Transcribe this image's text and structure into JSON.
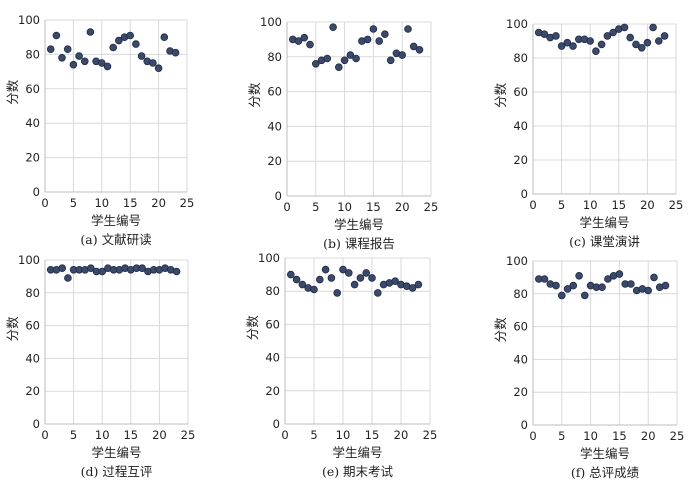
{
  "chart_data": [
    {
      "type": "scatter",
      "caption": "(a) 文献研读",
      "xlabel": "学生编号",
      "ylabel": "分数",
      "xlim": [
        0,
        25
      ],
      "ylim": [
        0,
        100
      ],
      "xticks": [
        0,
        5,
        10,
        15,
        20,
        25
      ],
      "yticks": [
        0,
        20,
        40,
        60,
        80,
        100
      ],
      "grid": true,
      "points": [
        [
          1,
          83
        ],
        [
          2,
          91
        ],
        [
          3,
          78
        ],
        [
          4,
          83
        ],
        [
          5,
          74
        ],
        [
          6,
          79
        ],
        [
          7,
          76
        ],
        [
          8,
          93
        ],
        [
          9,
          76
        ],
        [
          10,
          75
        ],
        [
          11,
          73
        ],
        [
          12,
          84
        ],
        [
          13,
          88
        ],
        [
          14,
          90
        ],
        [
          15,
          91
        ],
        [
          16,
          86
        ],
        [
          17,
          79
        ],
        [
          18,
          76
        ],
        [
          19,
          75
        ],
        [
          20,
          72
        ],
        [
          21,
          90
        ],
        [
          22,
          82
        ],
        [
          23,
          81
        ]
      ]
    },
    {
      "type": "scatter",
      "caption": "(b) 课程报告",
      "xlabel": "学生编号",
      "ylabel": "分数",
      "xlim": [
        0,
        25
      ],
      "ylim": [
        0,
        100
      ],
      "xticks": [
        0,
        5,
        10,
        15,
        20,
        25
      ],
      "yticks": [
        0,
        20,
        40,
        60,
        80,
        100
      ],
      "grid": true,
      "points": [
        [
          1,
          90
        ],
        [
          2,
          89
        ],
        [
          3,
          91
        ],
        [
          4,
          87
        ],
        [
          5,
          76
        ],
        [
          6,
          78
        ],
        [
          7,
          79
        ],
        [
          8,
          97
        ],
        [
          9,
          74
        ],
        [
          10,
          78
        ],
        [
          11,
          81
        ],
        [
          12,
          79
        ],
        [
          13,
          89
        ],
        [
          14,
          90
        ],
        [
          15,
          96
        ],
        [
          16,
          89
        ],
        [
          17,
          93
        ],
        [
          18,
          78
        ],
        [
          19,
          82
        ],
        [
          20,
          81
        ],
        [
          21,
          96
        ],
        [
          22,
          86
        ],
        [
          23,
          84
        ]
      ]
    },
    {
      "type": "scatter",
      "caption": "(c) 课堂演讲",
      "xlabel": "学生编号",
      "ylabel": "分数",
      "xlim": [
        0,
        25
      ],
      "ylim": [
        0,
        100
      ],
      "xticks": [
        0,
        5,
        10,
        15,
        20,
        25
      ],
      "yticks": [
        0,
        20,
        40,
        60,
        80,
        100
      ],
      "grid": true,
      "points": [
        [
          1,
          95
        ],
        [
          2,
          94
        ],
        [
          3,
          92
        ],
        [
          4,
          93
        ],
        [
          5,
          87
        ],
        [
          6,
          89
        ],
        [
          7,
          87
        ],
        [
          8,
          91
        ],
        [
          9,
          91
        ],
        [
          10,
          90
        ],
        [
          11,
          84
        ],
        [
          12,
          88
        ],
        [
          13,
          93
        ],
        [
          14,
          95
        ],
        [
          15,
          97
        ],
        [
          16,
          98
        ],
        [
          17,
          92
        ],
        [
          18,
          88
        ],
        [
          19,
          86
        ],
        [
          20,
          89
        ],
        [
          21,
          98
        ],
        [
          22,
          90
        ],
        [
          23,
          93
        ]
      ]
    },
    {
      "type": "scatter",
      "caption": "(d) 过程互评",
      "xlabel": "学生编号",
      "ylabel": "分数",
      "xlim": [
        0,
        25
      ],
      "ylim": [
        0,
        100
      ],
      "xticks": [
        0,
        5,
        10,
        15,
        20,
        25
      ],
      "yticks": [
        0,
        20,
        40,
        60,
        80,
        100
      ],
      "grid": true,
      "points": [
        [
          1,
          94
        ],
        [
          2,
          94
        ],
        [
          3,
          95
        ],
        [
          4,
          89
        ],
        [
          5,
          94
        ],
        [
          6,
          94
        ],
        [
          7,
          94
        ],
        [
          8,
          95
        ],
        [
          9,
          93
        ],
        [
          10,
          93
        ],
        [
          11,
          95
        ],
        [
          12,
          94
        ],
        [
          13,
          94
        ],
        [
          14,
          95
        ],
        [
          15,
          94
        ],
        [
          16,
          95
        ],
        [
          17,
          95
        ],
        [
          18,
          93
        ],
        [
          19,
          94
        ],
        [
          20,
          94
        ],
        [
          21,
          95
        ],
        [
          22,
          94
        ],
        [
          23,
          93
        ]
      ]
    },
    {
      "type": "scatter",
      "caption": "(e) 期末考试",
      "xlabel": "学生编号",
      "ylabel": "分数",
      "xlim": [
        0,
        25
      ],
      "ylim": [
        0,
        100
      ],
      "xticks": [
        0,
        5,
        10,
        15,
        20,
        25
      ],
      "yticks": [
        0,
        20,
        40,
        60,
        80,
        100
      ],
      "grid": true,
      "points": [
        [
          1,
          90
        ],
        [
          2,
          87
        ],
        [
          3,
          84
        ],
        [
          4,
          82
        ],
        [
          5,
          81
        ],
        [
          6,
          87
        ],
        [
          7,
          93
        ],
        [
          8,
          88
        ],
        [
          9,
          79
        ],
        [
          10,
          93
        ],
        [
          11,
          91
        ],
        [
          12,
          84
        ],
        [
          13,
          88
        ],
        [
          14,
          91
        ],
        [
          15,
          88
        ],
        [
          16,
          79
        ],
        [
          17,
          84
        ],
        [
          18,
          85
        ],
        [
          19,
          86
        ],
        [
          20,
          84
        ],
        [
          21,
          83
        ],
        [
          22,
          82
        ],
        [
          23,
          84
        ]
      ]
    },
    {
      "type": "scatter",
      "caption": "(f) 总评成绩",
      "xlabel": "学生编号",
      "ylabel": "分数",
      "xlim": [
        0,
        25
      ],
      "ylim": [
        0,
        100
      ],
      "xticks": [
        0,
        5,
        10,
        15,
        20,
        25
      ],
      "yticks": [
        0,
        20,
        40,
        60,
        80,
        100
      ],
      "grid": true,
      "points": [
        [
          1,
          89
        ],
        [
          2,
          89
        ],
        [
          3,
          86
        ],
        [
          4,
          85
        ],
        [
          5,
          79
        ],
        [
          6,
          83
        ],
        [
          7,
          85
        ],
        [
          8,
          91
        ],
        [
          9,
          79
        ],
        [
          10,
          85
        ],
        [
          11,
          84
        ],
        [
          12,
          84
        ],
        [
          13,
          89
        ],
        [
          14,
          91
        ],
        [
          15,
          92
        ],
        [
          16,
          86
        ],
        [
          17,
          86
        ],
        [
          18,
          82
        ],
        [
          19,
          83
        ],
        [
          20,
          82
        ],
        [
          21,
          90
        ],
        [
          22,
          84
        ],
        [
          23,
          85
        ]
      ]
    }
  ]
}
